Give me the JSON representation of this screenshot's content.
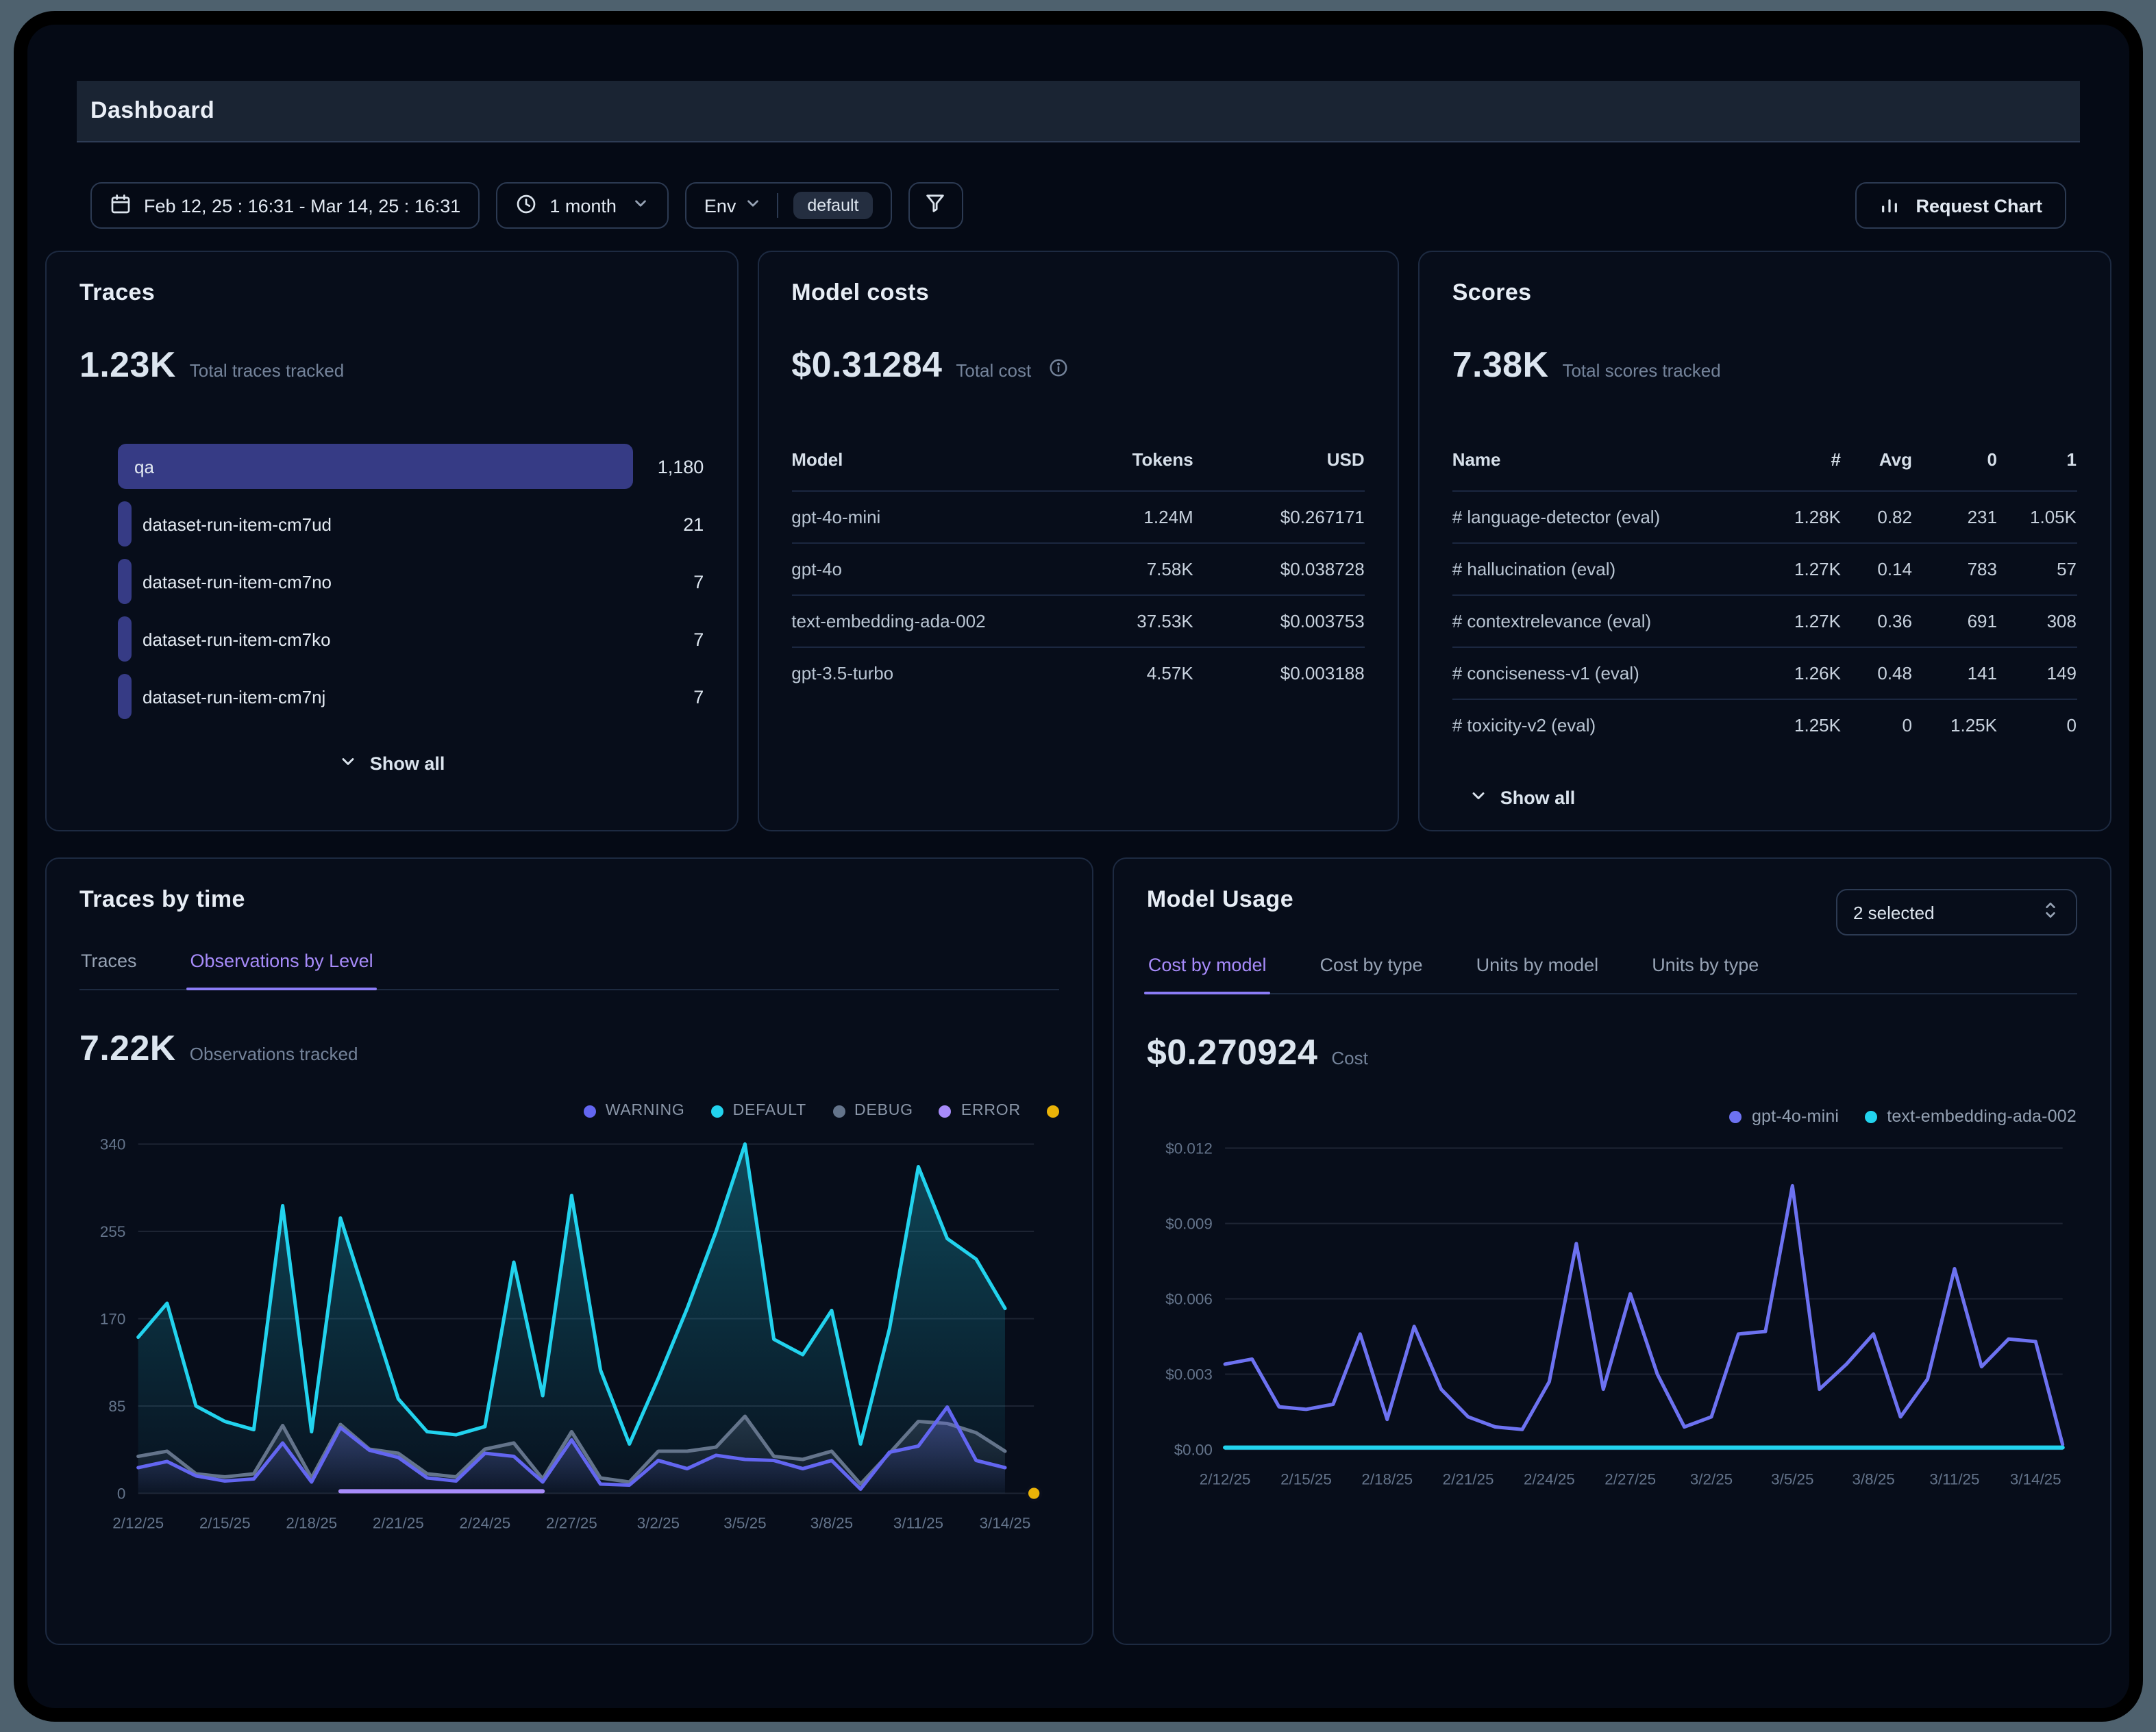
{
  "window": {
    "title": "Dashboard"
  },
  "colors": {
    "accent_purple": "#a78bfa",
    "indigo": "#6366f1",
    "cyan": "#22d3ee",
    "series_gray": "#64748b",
    "yellow": "#eab308",
    "trace_bar": "#363b85"
  },
  "icons": [
    "calendar-icon",
    "clock-icon",
    "chevron-down-icon",
    "funnel-icon",
    "bar-chart-icon",
    "info-icon",
    "chevrons-up-down-icon"
  ],
  "filters": {
    "date_range": "Feb 12, 25 : 16:31 - Mar 14, 25 : 16:31",
    "period": "1 month",
    "env_label": "Env",
    "env_value": "default",
    "request_chart_label": "Request Chart"
  },
  "traces_card": {
    "title": "Traces",
    "total": "1.23K",
    "total_label": "Total traces tracked",
    "show_all_label": "Show all",
    "items": [
      {
        "name": "qa",
        "value": 1180,
        "display": "1,180"
      },
      {
        "name": "dataset-run-item-cm7ud",
        "value": 21,
        "display": "21"
      },
      {
        "name": "dataset-run-item-cm7no",
        "value": 7,
        "display": "7"
      },
      {
        "name": "dataset-run-item-cm7ko",
        "value": 7,
        "display": "7"
      },
      {
        "name": "dataset-run-item-cm7nj",
        "value": 7,
        "display": "7"
      }
    ]
  },
  "model_costs_card": {
    "title": "Model costs",
    "total": "$0.31284",
    "total_label": "Total cost",
    "columns": [
      "Model",
      "Tokens",
      "USD"
    ],
    "rows": [
      [
        "gpt-4o-mini",
        "1.24M",
        "$0.267171"
      ],
      [
        "gpt-4o",
        "7.58K",
        "$0.038728"
      ],
      [
        "text-embedding-ada-002",
        "37.53K",
        "$0.003753"
      ],
      [
        "gpt-3.5-turbo",
        "4.57K",
        "$0.003188"
      ]
    ]
  },
  "scores_card": {
    "title": "Scores",
    "total": "7.38K",
    "total_label": "Total scores tracked",
    "show_all_label": "Show all",
    "columns": [
      "Name",
      "#",
      "Avg",
      "0",
      "1"
    ],
    "rows": [
      [
        "# language-detector (eval)",
        "1.28K",
        "0.82",
        "231",
        "1.05K"
      ],
      [
        "# hallucination (eval)",
        "1.27K",
        "0.14",
        "783",
        "57"
      ],
      [
        "# contextrelevance (eval)",
        "1.27K",
        "0.36",
        "691",
        "308"
      ],
      [
        "# conciseness-v1 (eval)",
        "1.26K",
        "0.48",
        "141",
        "149"
      ],
      [
        "# toxicity-v2 (eval)",
        "1.25K",
        "0",
        "1.25K",
        "0"
      ]
    ]
  },
  "traces_time_card": {
    "title": "Traces by time",
    "tabs": [
      {
        "label": "Traces",
        "active": false
      },
      {
        "label": "Observations by Level",
        "active": true
      }
    ],
    "total": "7.22K",
    "total_label": "Observations tracked"
  },
  "model_usage_card": {
    "title": "Model Usage",
    "selector": "2 selected",
    "tabs": [
      {
        "label": "Cost by model",
        "active": true
      },
      {
        "label": "Cost by type",
        "active": false
      },
      {
        "label": "Units by model",
        "active": false
      },
      {
        "label": "Units by type",
        "active": false
      }
    ],
    "total": "$0.270924",
    "total_label": "Cost"
  },
  "chart_data": [
    {
      "type": "line",
      "title": "Observations by Level",
      "x_labels": [
        "2/12/25",
        "2/15/25",
        "2/18/25",
        "2/21/25",
        "2/24/25",
        "2/27/25",
        "3/2/25",
        "3/5/25",
        "3/8/25",
        "3/11/25",
        "3/14/25"
      ],
      "x_label_positions": [
        0,
        3,
        6,
        9,
        12,
        15,
        18,
        21,
        24,
        27,
        30
      ],
      "x_max": 31,
      "ylim": [
        0,
        340
      ],
      "y_ticks": [
        {
          "v": 0,
          "label": "0"
        },
        {
          "v": 85,
          "label": "85"
        },
        {
          "v": 170,
          "label": "170"
        },
        {
          "v": 255,
          "label": "255"
        },
        {
          "v": 340,
          "label": "340"
        }
      ],
      "legend": [
        {
          "label": "WARNING",
          "color": "#6366f1"
        },
        {
          "label": "DEFAULT",
          "color": "#22d3ee"
        },
        {
          "label": "DEBUG",
          "color": "#64748b"
        },
        {
          "label": "ERROR",
          "color": "#a78bfa"
        },
        {
          "label": "",
          "color": "#eab308"
        }
      ],
      "series": [
        {
          "name": "DEFAULT",
          "color": "#22d3ee",
          "fill": true,
          "values": [
            152,
            185,
            85,
            70,
            62,
            280,
            60,
            268,
            180,
            92,
            60,
            57,
            65,
            225,
            95,
            290,
            120,
            48,
            112,
            180,
            255,
            340,
            150,
            135,
            178,
            48,
            160,
            318,
            248,
            228,
            180
          ]
        },
        {
          "name": "DEBUG",
          "color": "#64748b",
          "fill": true,
          "values": [
            36,
            41,
            19,
            16,
            19,
            66,
            15,
            67,
            43,
            39,
            19,
            16,
            43,
            49,
            14,
            60,
            15,
            11,
            41,
            41,
            45,
            75,
            36,
            33,
            41,
            9,
            39,
            70,
            68,
            59,
            41
          ]
        },
        {
          "name": "WARNING",
          "color": "#6366f1",
          "fill": true,
          "values": [
            25,
            31,
            17,
            12,
            14,
            49,
            11,
            64,
            42,
            35,
            15,
            12,
            39,
            36,
            11,
            52,
            9,
            8,
            32,
            24,
            37,
            33,
            32,
            24,
            32,
            4,
            40,
            46,
            84,
            32,
            25
          ]
        },
        {
          "name": "ERROR",
          "color": "#a78bfa",
          "width": 3,
          "values": [
            null,
            null,
            null,
            null,
            null,
            null,
            null,
            2,
            2,
            2,
            2,
            2,
            2,
            2,
            2,
            null,
            null,
            null,
            null,
            null,
            null,
            null,
            null,
            null,
            null,
            null,
            null,
            null,
            null,
            null,
            null
          ]
        }
      ],
      "point": {
        "x": 31,
        "y": 0,
        "color": "#eab308"
      }
    },
    {
      "type": "line",
      "title": "Cost by model",
      "x_labels": [
        "2/12/25",
        "2/15/25",
        "2/18/25",
        "2/21/25",
        "2/24/25",
        "2/27/25",
        "3/2/25",
        "3/5/25",
        "3/8/25",
        "3/11/25",
        "3/14/25"
      ],
      "x_label_positions": [
        0,
        3,
        6,
        9,
        12,
        15,
        18,
        21,
        24,
        27,
        30
      ],
      "x_max": 31,
      "ylim": [
        0,
        0.012
      ],
      "y_ticks": [
        {
          "v": 0,
          "label": "$0.00"
        },
        {
          "v": 0.003,
          "label": "$0.003"
        },
        {
          "v": 0.006,
          "label": "$0.006"
        },
        {
          "v": 0.009,
          "label": "$0.009"
        },
        {
          "v": 0.012,
          "label": "$0.012"
        }
      ],
      "legend": [
        {
          "label": "gpt-4o-mini",
          "color": "#6d72f1"
        },
        {
          "label": "text-embedding-ada-002",
          "color": "#22d3ee"
        }
      ],
      "series": [
        {
          "name": "gpt-4o-mini",
          "color": "#6d72f1",
          "values": [
            0.0034,
            0.0036,
            0.0017,
            0.0016,
            0.0018,
            0.0046,
            0.0012,
            0.0049,
            0.0024,
            0.0013,
            0.0009,
            0.0008,
            0.0027,
            0.0082,
            0.0024,
            0.0062,
            0.003,
            0.0009,
            0.0013,
            0.0046,
            0.0047,
            0.0105,
            0.0024,
            0.0034,
            0.0046,
            0.0013,
            0.0028,
            0.0072,
            0.0033,
            0.0044,
            0.0043,
            0.0002
          ]
        },
        {
          "name": "text-embedding-ada-002",
          "color": "#22d3ee",
          "width": 3,
          "values": [
            8e-05,
            8e-05,
            8e-05,
            8e-05,
            8e-05,
            8e-05,
            8e-05,
            8e-05,
            8e-05,
            8e-05,
            8e-05,
            8e-05,
            8e-05,
            8e-05,
            8e-05,
            8e-05,
            8e-05,
            8e-05,
            8e-05,
            8e-05,
            8e-05,
            8e-05,
            8e-05,
            8e-05,
            8e-05,
            8e-05,
            8e-05,
            8e-05,
            8e-05,
            8e-05,
            8e-05,
            8e-05
          ]
        }
      ]
    }
  ]
}
